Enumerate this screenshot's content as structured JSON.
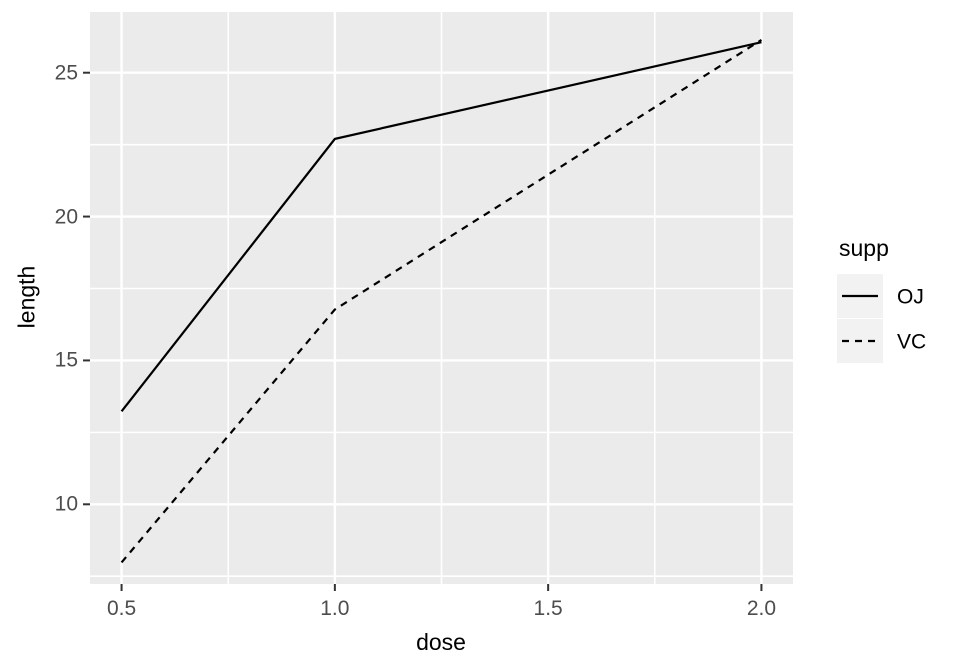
{
  "chart_data": {
    "type": "line",
    "x": [
      0.5,
      1.0,
      2.0
    ],
    "series": [
      {
        "name": "OJ",
        "values": [
          13.23,
          22.7,
          26.06
        ],
        "linetype": "solid"
      },
      {
        "name": "VC",
        "values": [
          7.98,
          16.77,
          26.14
        ],
        "linetype": "dashed"
      }
    ],
    "xlabel": "dose",
    "ylabel": "length",
    "legend_title": "supp",
    "legend_position": "right",
    "grid": true,
    "xlim": [
      0.426,
      2.074
    ],
    "ylim": [
      7.23,
      27.11
    ],
    "x_ticks": [
      0.5,
      1.0,
      1.5,
      2.0
    ],
    "x_tick_labels": [
      "0.5",
      "1.0",
      "1.5",
      "2.0"
    ],
    "y_ticks": [
      10,
      15,
      20,
      25
    ],
    "y_tick_labels": [
      "10",
      "15",
      "20",
      "25"
    ],
    "x_minor_ticks": [
      0.75,
      1.25,
      1.75
    ],
    "y_minor_ticks": [
      7.5,
      12.5,
      17.5,
      22.5
    ],
    "colors": {
      "page_bg": "#FFFFFF",
      "panel_bg": "#EBEBEB",
      "grid": "#FFFFFF",
      "line": "#000000",
      "tick_mark": "#333333",
      "tick_text": "#4D4D4D",
      "axis_title_text": "#000000",
      "legend_key_bg": "#F2F2F2"
    }
  }
}
